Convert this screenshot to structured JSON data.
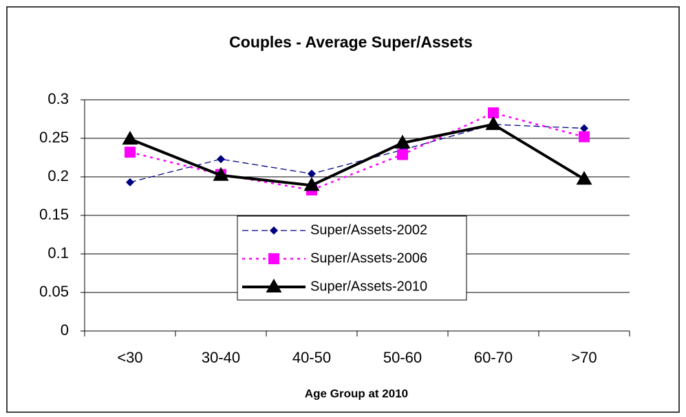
{
  "chart_data": {
    "type": "line",
    "title": "Couples - Average Super/Assets",
    "x_label": "Age Group at 2010",
    "categories": [
      "<30",
      "30-40",
      "40-50",
      "50-60",
      "60-70",
      ">70"
    ],
    "series": [
      {
        "name": "Super/Assets-2002",
        "color": "#000080",
        "values": [
          0.193,
          0.223,
          0.204,
          0.235,
          0.268,
          0.263
        ]
      },
      {
        "name": "Super/Assets-2006",
        "color": "#ff00ff",
        "values": [
          0.232,
          0.203,
          0.183,
          0.229,
          0.283,
          0.252
        ]
      },
      {
        "name": "Super/Assets-2010",
        "color": "#000000",
        "values": [
          0.249,
          0.202,
          0.189,
          0.244,
          0.268,
          0.197
        ]
      }
    ],
    "ylim": [
      0,
      0.3
    ],
    "yticks": [
      0,
      0.05,
      0.1,
      0.15,
      0.2,
      0.25,
      0.3
    ],
    "grid": true
  }
}
